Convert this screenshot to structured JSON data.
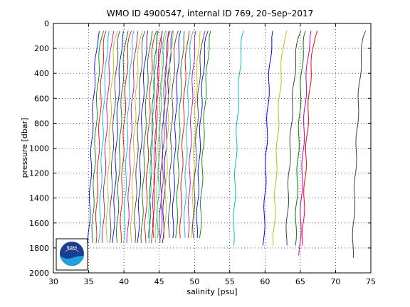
{
  "chart_data": {
    "type": "line",
    "title": "WMO ID 4900547, internal ID 769, 20–Sep–2017",
    "xlabel": "salinity [psu]",
    "ylabel": "pressure [dbar]",
    "xlim": [
      30,
      75
    ],
    "ylim": [
      0,
      2000
    ],
    "y_reversed": true,
    "grid": true,
    "x_ticks": [
      30,
      35,
      40,
      45,
      50,
      55,
      60,
      65,
      70,
      75
    ],
    "y_ticks": [
      0,
      200,
      400,
      600,
      800,
      1000,
      1200,
      1400,
      1600,
      1800,
      2000
    ],
    "logo": {
      "text": "NOAA",
      "colors": {
        "outer": "#1a3e8f",
        "wave": "#1fa3e0",
        "bird": "#ffffff"
      }
    },
    "palette": [
      "#0000ff",
      "#008000",
      "#ff0000",
      "#00bfbf",
      "#bf00bf",
      "#bfbf00",
      "#404040"
    ],
    "clusters": [
      {
        "start": 35.0,
        "count": 22,
        "spacing": 0.5,
        "top_offset": 1.5,
        "p_top": 60,
        "p_bottom": 1760
      },
      {
        "start": 43.6,
        "count": 12,
        "spacing": 0.55,
        "top_offset": 1.2,
        "p_top": 60,
        "p_bottom": 1720
      },
      {
        "start": 49.8,
        "count": 3,
        "spacing": 0.5,
        "top_offset": 1.6,
        "p_top": 60,
        "p_bottom": 1720
      }
    ],
    "series": [
      {
        "color": "#00bfbf",
        "bottom": 55.5,
        "top": 57.0,
        "p_top": 60,
        "p_bottom": 1780
      },
      {
        "color": "#0000ff",
        "bottom": 59.8,
        "top": 61.2,
        "p_top": 60,
        "p_bottom": 1780
      },
      {
        "color": "#bfbf00",
        "bottom": 61.2,
        "top": 63.0,
        "p_top": 60,
        "p_bottom": 1780
      },
      {
        "color": "#404040",
        "bottom": 63.0,
        "top": 65.0,
        "p_top": 60,
        "p_bottom": 1780
      },
      {
        "color": "#008000",
        "bottom": 64.3,
        "top": 65.8,
        "p_top": 60,
        "p_bottom": 1780
      },
      {
        "color": "#bf00bf",
        "bottom": 64.9,
        "top": 66.6,
        "p_top": 60,
        "p_bottom": 1860
      },
      {
        "color": "#ff0000",
        "bottom": 65.3,
        "top": 67.3,
        "p_top": 60,
        "p_bottom": 1780
      },
      {
        "color": "#404040",
        "bottom": 72.4,
        "top": 74.2,
        "p_top": 60,
        "p_bottom": 1880
      }
    ]
  }
}
